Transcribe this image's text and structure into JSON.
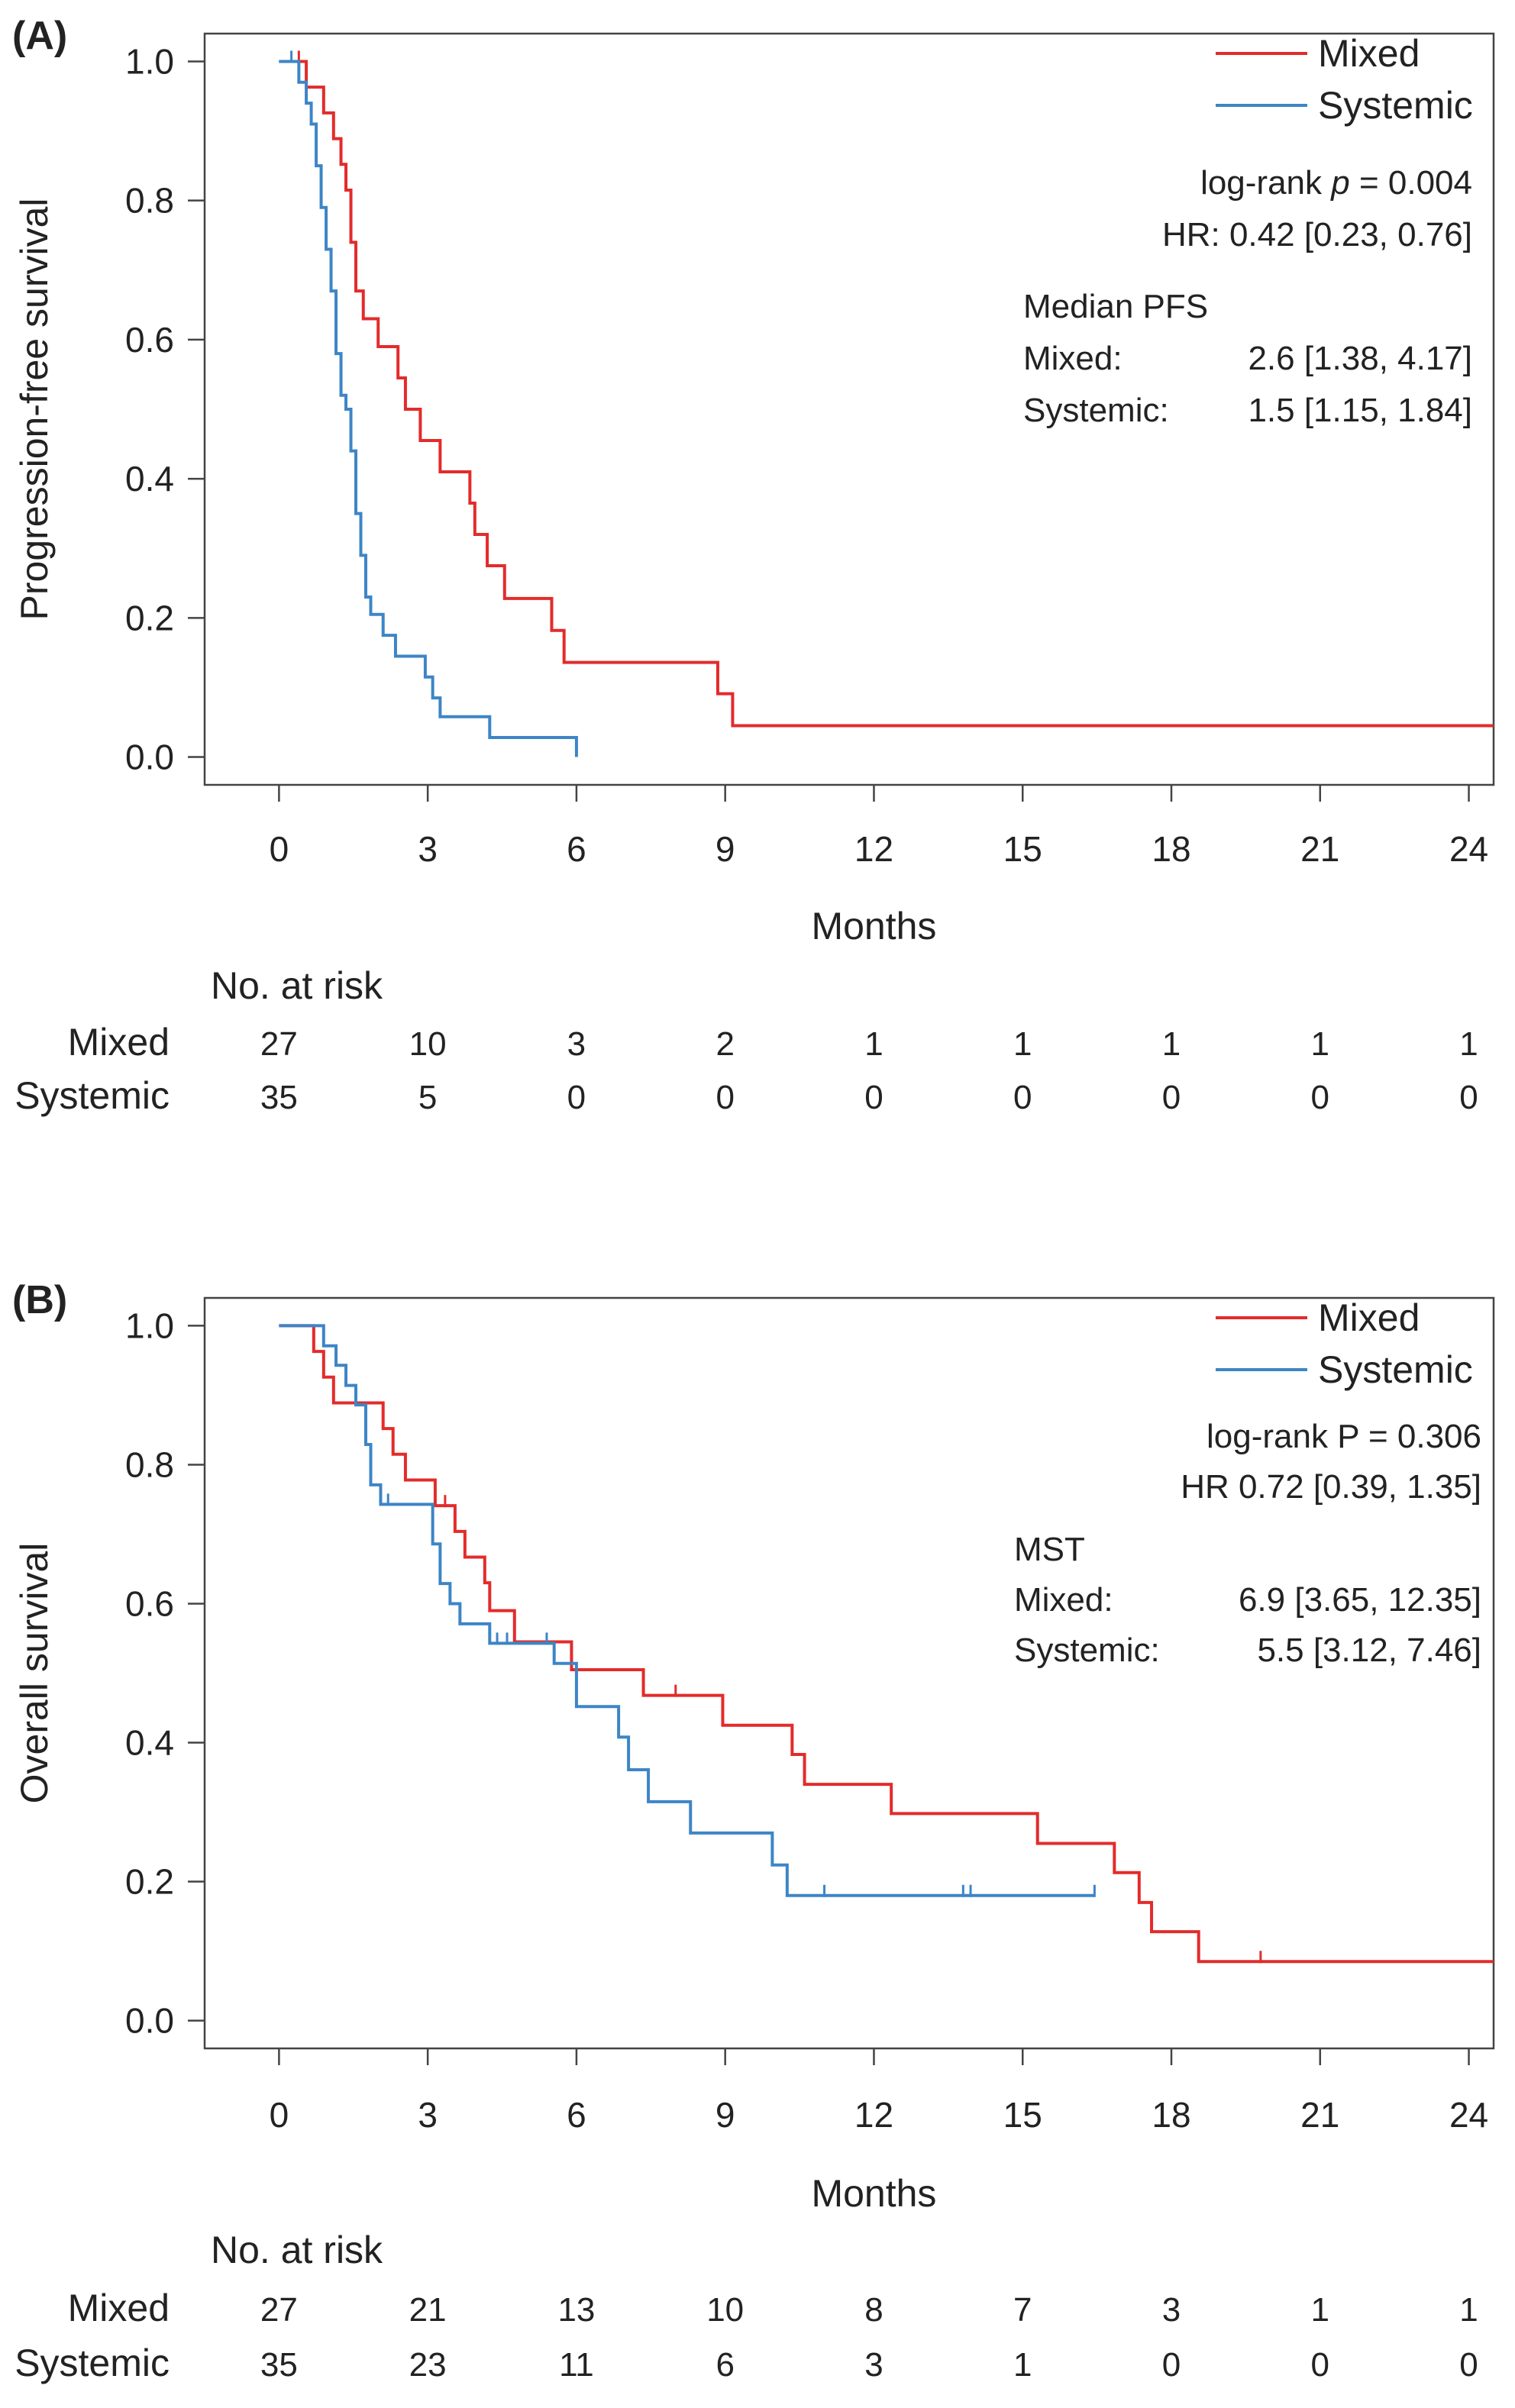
{
  "chart_data": [
    {
      "type": "line",
      "panel_label": "(A)",
      "xlabel": "Months",
      "ylabel": "Progression-free survival",
      "xlim": [
        -1.5,
        24.5
      ],
      "ylim": [
        -0.04,
        1.04
      ],
      "x_ticks": [
        0,
        3,
        6,
        9,
        12,
        15,
        18,
        21,
        24
      ],
      "x_tick_labels": [
        "0",
        "3",
        "6",
        "9",
        "12",
        "15",
        "18",
        "21",
        "24"
      ],
      "y_ticks": [
        0.0,
        0.2,
        0.4,
        0.6,
        0.8,
        1.0
      ],
      "y_tick_labels": [
        "0.0",
        "0.2",
        "0.4",
        "0.6",
        "0.8",
        "1.0"
      ],
      "grid": false,
      "legend": {
        "position": "top-right",
        "entries": [
          "Mixed",
          "Systemic"
        ]
      },
      "series": [
        {
          "name": "Mixed",
          "color": "#e32b2b",
          "step": true,
          "x": [
            0,
            0.55,
            0.9,
            1.1,
            1.25,
            1.35,
            1.45,
            1.55,
            1.7,
            2.0,
            2.4,
            2.55,
            2.85,
            3.25,
            3.85,
            3.95,
            4.2,
            4.55,
            5.5,
            5.75,
            8.85,
            9.15,
            24.5
          ],
          "y": [
            1.0,
            0.963,
            0.926,
            0.889,
            0.852,
            0.815,
            0.74,
            0.67,
            0.63,
            0.59,
            0.545,
            0.5,
            0.455,
            0.41,
            0.365,
            0.32,
            0.275,
            0.228,
            0.182,
            0.136,
            0.091,
            0.045,
            0.045
          ],
          "censor_x": [
            0.4
          ]
        },
        {
          "name": "Systemic",
          "color": "#3d85c6",
          "step": true,
          "x": [
            0,
            0.4,
            0.55,
            0.65,
            0.75,
            0.85,
            0.95,
            1.05,
            1.15,
            1.25,
            1.35,
            1.45,
            1.55,
            1.65,
            1.75,
            1.85,
            2.1,
            2.35,
            2.65,
            2.95,
            3.1,
            3.25,
            3.45,
            4.25,
            6.0,
            6.0
          ],
          "y": [
            1.0,
            0.97,
            0.94,
            0.91,
            0.85,
            0.79,
            0.73,
            0.67,
            0.58,
            0.52,
            0.5,
            0.44,
            0.35,
            0.29,
            0.23,
            0.205,
            0.175,
            0.145,
            0.145,
            0.115,
            0.085,
            0.058,
            0.058,
            0.028,
            0.028,
            0.0
          ],
          "censor_x": [
            0.25
          ]
        }
      ],
      "annotations": [
        {
          "text": "log-rank",
          "italic": false
        },
        {
          "text": "p",
          "italic": true
        },
        {
          "text": "= 0.004",
          "italic": false
        },
        {
          "text": "HR: 0.42 [0.23, 0.76]"
        },
        {
          "text": "Median PFS"
        },
        {
          "text": "Mixed:",
          "value": "2.6 [1.38, 4.17]"
        },
        {
          "text": "Systemic:",
          "value": "1.5 [1.15, 1.84]"
        }
      ],
      "risk_table": {
        "title": "No. at risk",
        "times": [
          0,
          3,
          6,
          9,
          12,
          15,
          18,
          21,
          24
        ],
        "rows": [
          {
            "label": "Mixed",
            "counts": [
              "27",
              "10",
              "3",
              "2",
              "1",
              "1",
              "1",
              "1",
              "1"
            ]
          },
          {
            "label": "Systemic",
            "counts": [
              "35",
              "5",
              "0",
              "0",
              "0",
              "0",
              "0",
              "0",
              "0"
            ]
          }
        ]
      }
    },
    {
      "type": "line",
      "panel_label": "(B)",
      "xlabel": "Months",
      "ylabel": "Overall survival",
      "xlim": [
        -1.5,
        24.5
      ],
      "ylim": [
        -0.04,
        1.04
      ],
      "x_ticks": [
        0,
        3,
        6,
        9,
        12,
        15,
        18,
        21,
        24
      ],
      "x_tick_labels": [
        "0",
        "3",
        "6",
        "9",
        "12",
        "15",
        "18",
        "21",
        "24"
      ],
      "y_ticks": [
        0.0,
        0.2,
        0.4,
        0.6,
        0.8,
        1.0
      ],
      "y_tick_labels": [
        "0.0",
        "0.2",
        "0.4",
        "0.6",
        "0.8",
        "1.0"
      ],
      "grid": false,
      "legend": {
        "position": "top-right",
        "entries": [
          "Mixed",
          "Systemic"
        ]
      },
      "series": [
        {
          "name": "Mixed",
          "color": "#e32b2b",
          "step": true,
          "x": [
            0,
            0.7,
            0.9,
            1.1,
            2.1,
            2.3,
            2.55,
            3.15,
            3.55,
            3.75,
            4.15,
            4.25,
            4.75,
            5.9,
            7.35,
            8.95,
            10.35,
            10.6,
            12.35,
            15.3,
            16.85,
            17.35,
            17.6,
            18.55,
            24.5
          ],
          "y": [
            1.0,
            0.963,
            0.926,
            0.889,
            0.852,
            0.815,
            0.778,
            0.741,
            0.704,
            0.667,
            0.63,
            0.59,
            0.545,
            0.505,
            0.468,
            0.425,
            0.383,
            0.34,
            0.298,
            0.255,
            0.213,
            0.17,
            0.128,
            0.085,
            0.085
          ],
          "censor_x": [
            3.35,
            8.0,
            19.8
          ]
        },
        {
          "name": "Systemic",
          "color": "#3d85c6",
          "step": true,
          "x": [
            0,
            0.9,
            1.15,
            1.35,
            1.55,
            1.75,
            1.85,
            2.05,
            3.1,
            3.25,
            3.45,
            3.65,
            4.25,
            5.55,
            6.0,
            6.85,
            7.05,
            7.45,
            8.3,
            9.95,
            10.25,
            16.45
          ],
          "y": [
            1.0,
            0.971,
            0.943,
            0.914,
            0.886,
            0.829,
            0.771,
            0.743,
            0.686,
            0.629,
            0.6,
            0.571,
            0.543,
            0.514,
            0.452,
            0.408,
            0.361,
            0.315,
            0.27,
            0.224,
            0.18,
            0.18
          ],
          "censor_x": [
            2.2,
            4.4,
            4.6,
            5.4,
            11.0,
            13.8,
            13.95,
            16.45
          ]
        }
      ],
      "annotations": [
        {
          "text": "log-rank  P = 0.306"
        },
        {
          "text": "HR 0.72 [0.39, 1.35]"
        },
        {
          "text": "MST"
        },
        {
          "text": "Mixed:",
          "value": "6.9 [3.65, 12.35]"
        },
        {
          "text": "Systemic:",
          "value": "5.5 [3.12,   7.46]"
        }
      ],
      "risk_table": {
        "title": "No. at risk",
        "times": [
          0,
          3,
          6,
          9,
          12,
          15,
          18,
          21,
          24
        ],
        "rows": [
          {
            "label": "Mixed",
            "counts": [
              "27",
              "21",
              "13",
              "10",
              "8",
              "7",
              "3",
              "1",
              "1"
            ]
          },
          {
            "label": "Systemic",
            "counts": [
              "35",
              "23",
              "11",
              "6",
              "3",
              "1",
              "0",
              "0",
              "0"
            ]
          }
        ]
      }
    }
  ]
}
